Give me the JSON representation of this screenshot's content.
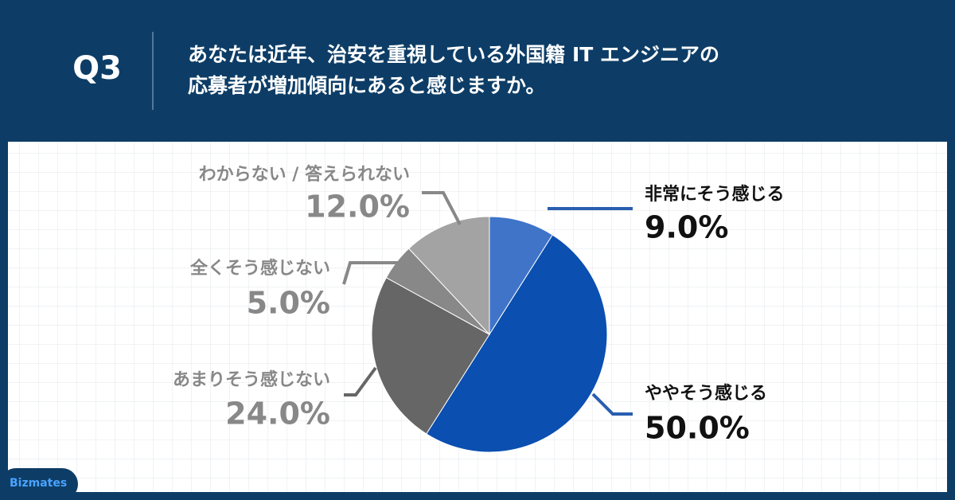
{
  "brand": "Bizmates",
  "chart_data": {
    "type": "pie",
    "question": "Q3",
    "title": [
      "あなたは近年、治安を重視している外国籍 IT エンジニアの",
      "応募者が増加傾向にあると感じますか。"
    ],
    "categories": [
      "非常にそう感じる",
      "ややそう感じる",
      "あまりそう感じない",
      "全くそう感じない",
      "わからない / 答えられない"
    ],
    "values": [
      9,
      50,
      24,
      5,
      12
    ],
    "value_labels": [
      "9.0%",
      "50.0%",
      "24.0%",
      "5.0%",
      "12.0%"
    ],
    "colors": [
      "#3f74c8",
      "#0b4fb0",
      "#666666",
      "#888888",
      "#a3a3a3"
    ]
  }
}
